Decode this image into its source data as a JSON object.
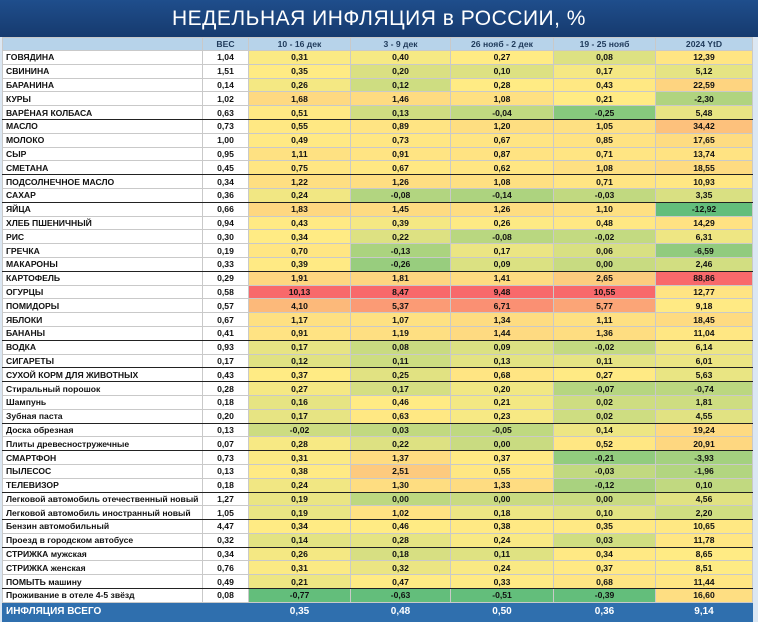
{
  "header": {
    "title": "НЕДЕЛЬНАЯ ИНФЛЯЦИЯ в РОССИИ, %"
  },
  "table": {
    "columns": [
      "ВЕС",
      "10 - 16 дек",
      "3 - 9 дек",
      "26 нояб - 2 дек",
      "19 - 25 нояб",
      "2024 YtD"
    ],
    "rows": [
      [
        "ГОВЯДИНА",
        "1,04",
        "0,31",
        "0,40",
        "0,27",
        "0,08",
        "12,39"
      ],
      [
        "СВИНИНА",
        "1,51",
        "0,35",
        "0,20",
        "0,10",
        "0,17",
        "5,12"
      ],
      [
        "БАРАНИНА",
        "0,14",
        "0,26",
        "0,12",
        "0,28",
        "0,43",
        "22,59"
      ],
      [
        "КУРЫ",
        "1,02",
        "1,68",
        "1,46",
        "1,08",
        "0,21",
        "-2,30"
      ],
      [
        "ВАРЁНАЯ КОЛБАСА",
        "0,63",
        "0,51",
        "0,13",
        "-0,04",
        "-0,25",
        "5,48"
      ],
      [
        "МАСЛО",
        "0,73",
        "0,55",
        "0,89",
        "1,20",
        "1,05",
        "34,42"
      ],
      [
        "МОЛОКО",
        "1,00",
        "0,49",
        "0,73",
        "0,67",
        "0,85",
        "17,65"
      ],
      [
        "СЫР",
        "0,95",
        "1,11",
        "0,91",
        "0,87",
        "0,71",
        "13,74"
      ],
      [
        "СМЕТАНА",
        "0,45",
        "0,75",
        "0,67",
        "0,62",
        "1,08",
        "18,55"
      ],
      [
        "ПОДСОЛНЕЧНОЕ МАСЛО",
        "0,34",
        "1,22",
        "1,26",
        "1,08",
        "0,71",
        "10,93"
      ],
      [
        "САХАР",
        "0,36",
        "0,24",
        "-0,08",
        "-0,14",
        "-0,03",
        "3,35"
      ],
      [
        "ЯЙЦА",
        "0,66",
        "1,83",
        "1,45",
        "1,26",
        "1,10",
        "-12,92"
      ],
      [
        "ХЛЕБ ПШЕНИЧНЫЙ",
        "0,94",
        "0,43",
        "0,39",
        "0,26",
        "0,48",
        "14,29"
      ],
      [
        "РИС",
        "0,30",
        "0,34",
        "0,22",
        "-0,08",
        "-0,02",
        "6,31"
      ],
      [
        "ГРЕЧКА",
        "0,19",
        "0,70",
        "-0,13",
        "0,17",
        "0,06",
        "-6,59"
      ],
      [
        "МАКАРОНЫ",
        "0,33",
        "0,39",
        "-0,26",
        "0,09",
        "0,00",
        "2,46"
      ],
      [
        "КАРТОФЕЛЬ",
        "0,29",
        "1,91",
        "1,81",
        "1,41",
        "2,65",
        "88,86"
      ],
      [
        "ОГУРЦЫ",
        "0,58",
        "10,13",
        "8,47",
        "9,48",
        "10,55",
        "12,77"
      ],
      [
        "ПОМИДОРЫ",
        "0,57",
        "4,10",
        "5,37",
        "6,71",
        "5,77",
        "9,18"
      ],
      [
        "ЯБЛОКИ",
        "0,67",
        "1,17",
        "1,07",
        "1,34",
        "1,11",
        "18,45"
      ],
      [
        "БАНАНЫ",
        "0,41",
        "0,91",
        "1,19",
        "1,44",
        "1,36",
        "11,04"
      ],
      [
        "ВОДКА",
        "0,93",
        "0,17",
        "0,08",
        "0,09",
        "-0,02",
        "6,14"
      ],
      [
        "СИГАРЕТЫ",
        "0,17",
        "0,12",
        "0,11",
        "0,13",
        "0,11",
        "6,01"
      ],
      [
        "СУХОЙ КОРМ ДЛЯ ЖИВОТНЫХ",
        "0,43",
        "0,37",
        "0,25",
        "0,68",
        "0,27",
        "5,63"
      ],
      [
        "Стиральный порошок",
        "0,28",
        "0,27",
        "0,17",
        "0,20",
        "-0,07",
        "-0,74"
      ],
      [
        "Шампунь",
        "0,18",
        "0,16",
        "0,46",
        "0,21",
        "0,02",
        "1,81"
      ],
      [
        "Зубная паста",
        "0,20",
        "0,17",
        "0,63",
        "0,23",
        "0,02",
        "4,55"
      ],
      [
        "Доска обрезная",
        "0,13",
        "-0,02",
        "0,03",
        "-0,05",
        "0,14",
        "19,24"
      ],
      [
        "Плиты древесностружечные",
        "0,07",
        "0,28",
        "0,22",
        "0,00",
        "0,52",
        "20,91"
      ],
      [
        "СМАРТФОН",
        "0,73",
        "0,31",
        "1,37",
        "0,37",
        "-0,21",
        "-3,93"
      ],
      [
        "ПЫЛЕСОС",
        "0,13",
        "0,38",
        "2,51",
        "0,55",
        "-0,03",
        "-1,96"
      ],
      [
        "ТЕЛЕВИЗОР",
        "0,18",
        "0,24",
        "1,30",
        "1,33",
        "-0,12",
        "0,10"
      ],
      [
        "Легковой автомобиль отечественный новый",
        "1,27",
        "0,19",
        "0,00",
        "0,00",
        "0,00",
        "4,56"
      ],
      [
        "Легковой автомобиль иностранный новый",
        "1,05",
        "0,19",
        "1,02",
        "0,18",
        "0,10",
        "2,20"
      ],
      [
        "Бензин автомобильный",
        "4,47",
        "0,34",
        "0,46",
        "0,38",
        "0,35",
        "10,65"
      ],
      [
        "Проезд в городском автобусе",
        "0,32",
        "0,14",
        "0,28",
        "0,24",
        "0,03",
        "11,78"
      ],
      [
        "СТРИЖКА мужская",
        "0,34",
        "0,26",
        "0,18",
        "0,11",
        "0,34",
        "8,65"
      ],
      [
        "СТРИЖКА женская",
        "0,76",
        "0,31",
        "0,32",
        "0,24",
        "0,37",
        "8,51"
      ],
      [
        "ПОМЫТЬ машину",
        "0,49",
        "0,21",
        "0,47",
        "0,33",
        "0,68",
        "11,44"
      ],
      [
        "Проживание в отеле 4-5 звёзд",
        "0,08",
        "-0,77",
        "-0,63",
        "-0,51",
        "-0,39",
        "16,60"
      ]
    ],
    "total": {
      "label": "ИНФЛЯЦИЯ ВСЕГО",
      "values": [
        "0,35",
        "0,48",
        "0,50",
        "0,36",
        "9,14"
      ]
    }
  }
}
